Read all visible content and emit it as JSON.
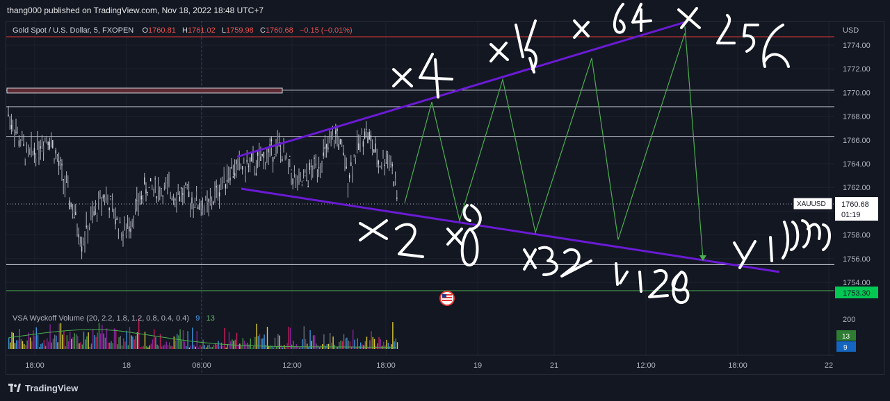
{
  "header": {
    "published": "thang000 published on TradingView.com, Nov 18, 2022 18:48 UTC+7"
  },
  "legend": {
    "symbol": "Gold Spot / U.S. Dollar, 5, FXOPEN",
    "o_label": "O",
    "o": "1760.81",
    "h_label": "H",
    "h": "1761.02",
    "l_label": "L",
    "l": "1759.98",
    "c_label": "C",
    "c": "1760.68",
    "change": "−0.15 (−0.01%)"
  },
  "indicator": {
    "name": "VSA Wyckoff Volume (20, 2.2, 1.8, 1.2, 0.8, 0.4, 0.4)",
    "val_a": "9",
    "val_b": "13",
    "axis_label": "200",
    "badge_a": "13",
    "badge_b": "9"
  },
  "price_axis": {
    "currency": "USD",
    "ticks": [
      "1774.00",
      "1772.00",
      "1770.00",
      "1768.00",
      "1766.00",
      "1764.00",
      "1762.00",
      "1760.00",
      "1758.00",
      "1756.00",
      "1754.00"
    ],
    "last_symbol": "XAUUSD",
    "last_price": "1760.68",
    "countdown": "01:19",
    "green_level": "1753.30"
  },
  "time_axis": {
    "ticks": [
      "18:00",
      "18",
      "06:00",
      "12:00",
      "18:00",
      "19",
      "21",
      "12:00",
      "18:00",
      "22"
    ]
  },
  "annotations": [
    "x4",
    "x16",
    "x64",
    "x256",
    "x2",
    "x8",
    "x32",
    "x128",
    "x1000"
  ],
  "footer": {
    "brand": "TradingView"
  },
  "colors": {
    "bg": "#131722",
    "purple": "#6a1bd4",
    "green_proj": "#4caf50",
    "red_line": "#e53935",
    "green_line": "#4caf50"
  },
  "chart_data": {
    "type": "line",
    "title": "Gold Spot / U.S. Dollar, 5, FXOPEN",
    "ylim": [
      1753,
      1776
    ],
    "series": [
      {
        "name": "",
        "x": [
          "Nov 18 18:48",
          "Nov 19",
          "Nov 20",
          "Nov 21",
          "Nov 21 12:00",
          "Nov 21 18:00",
          "Nov 22",
          "Nov 22 12:00"
        ],
        "values": [
          1760.7,
          1769.2,
          1759.2,
          1771.1,
          1758.2,
          1772.9,
          1757.6,
          1775.0
        ]
      }
    ],
    "horizontal_levels": [
      1774.7,
      1770.2,
      1768.8,
      1766.3,
      1760.7,
      1755.5,
      1753.3
    ]
  }
}
